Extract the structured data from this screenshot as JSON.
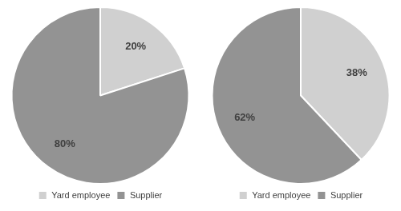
{
  "chart_data": [
    {
      "type": "pie",
      "categories": [
        "Yard employee",
        "Supplier"
      ],
      "values": [
        20,
        80
      ],
      "value_labels": [
        "20%",
        "80%"
      ],
      "colors": [
        "#d0d0d0",
        "#939393"
      ],
      "data_labels": true,
      "legend": "bottom"
    },
    {
      "type": "pie",
      "categories": [
        "Yard employee",
        "Supplier"
      ],
      "values": [
        38,
        62
      ],
      "value_labels": [
        "38%",
        "62%"
      ],
      "colors": [
        "#d0d0d0",
        "#939393"
      ],
      "data_labels": true,
      "legend": "bottom"
    }
  ]
}
